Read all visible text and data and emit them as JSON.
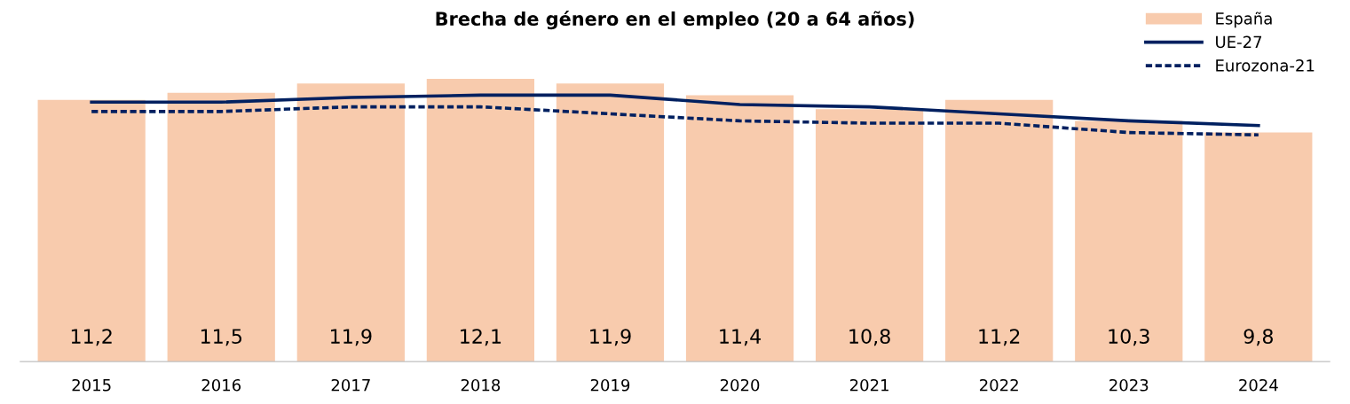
{
  "chart_data": {
    "type": "bar",
    "title": "Brecha de género en el empleo (20 a 64 años)",
    "categories": [
      "2015",
      "2016",
      "2017",
      "2018",
      "2019",
      "2020",
      "2021",
      "2022",
      "2023",
      "2024"
    ],
    "series": [
      {
        "name": "España",
        "color": "#f8cbad",
        "values": [
          11.2,
          11.5,
          11.9,
          12.1,
          11.9,
          11.4,
          10.8,
          11.2,
          10.3,
          9.8
        ],
        "value_labels": [
          "11,2",
          "11,5",
          "11,9",
          "12,1",
          "11,9",
          "11,4",
          "10,8",
          "11,2",
          "10,3",
          "9,8"
        ]
      },
      {
        "name": "UE-27",
        "type": "line",
        "color": "#002060",
        "line_style": "solid",
        "values": [
          11.1,
          11.1,
          11.3,
          11.4,
          11.4,
          11.0,
          10.9,
          10.6,
          10.3,
          10.1
        ]
      },
      {
        "name": "Eurozona-21",
        "type": "line",
        "color": "#002060",
        "line_style": "dashed",
        "values": [
          10.7,
          10.7,
          10.9,
          10.9,
          10.6,
          10.3,
          10.2,
          10.2,
          9.8,
          9.7
        ]
      }
    ],
    "legend": "top right",
    "grid": false,
    "tick_labels": "x"
  }
}
